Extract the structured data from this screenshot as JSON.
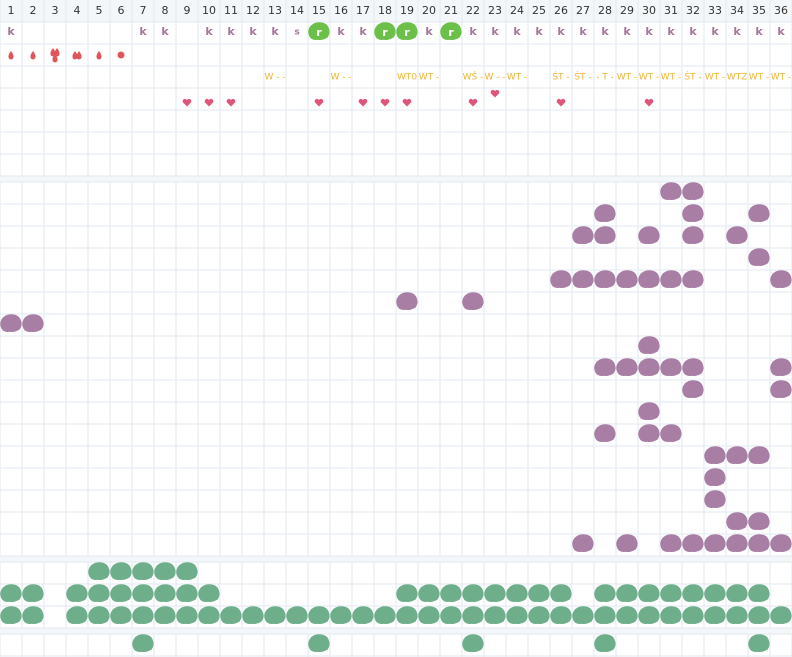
{
  "header": {
    "days": [
      1,
      2,
      3,
      4,
      5,
      6,
      7,
      8,
      9,
      10,
      11,
      12,
      13,
      14,
      15,
      16,
      17,
      18,
      19,
      20,
      21,
      22,
      23,
      24,
      25,
      26,
      27,
      28,
      29,
      30,
      31,
      32,
      33,
      34,
      35,
      36
    ]
  },
  "rows": {
    "marks": [
      "k",
      null,
      null,
      null,
      null,
      null,
      "k",
      "k",
      null,
      "k",
      "k",
      "k",
      "k",
      "s",
      "r",
      "k",
      "k",
      "r",
      "r",
      "k",
      "r",
      "k",
      "k",
      "k",
      "k",
      "k",
      "k",
      "k",
      "k",
      "k",
      "k",
      "k",
      "k",
      "k",
      "k",
      "k"
    ],
    "labels": [
      null,
      null,
      null,
      null,
      null,
      null,
      null,
      null,
      null,
      null,
      null,
      null,
      "W - -",
      null,
      null,
      "W - -",
      null,
      null,
      "WT0",
      "WT -",
      null,
      "WŚ -",
      "W - -",
      "WT -",
      null,
      "ŚT -",
      "ŚT -",
      "- T -",
      "WT -",
      "WT -",
      "WT -",
      "ŚT -",
      "WT -",
      "WTZ",
      "WT -",
      "WT -"
    ]
  }
}
